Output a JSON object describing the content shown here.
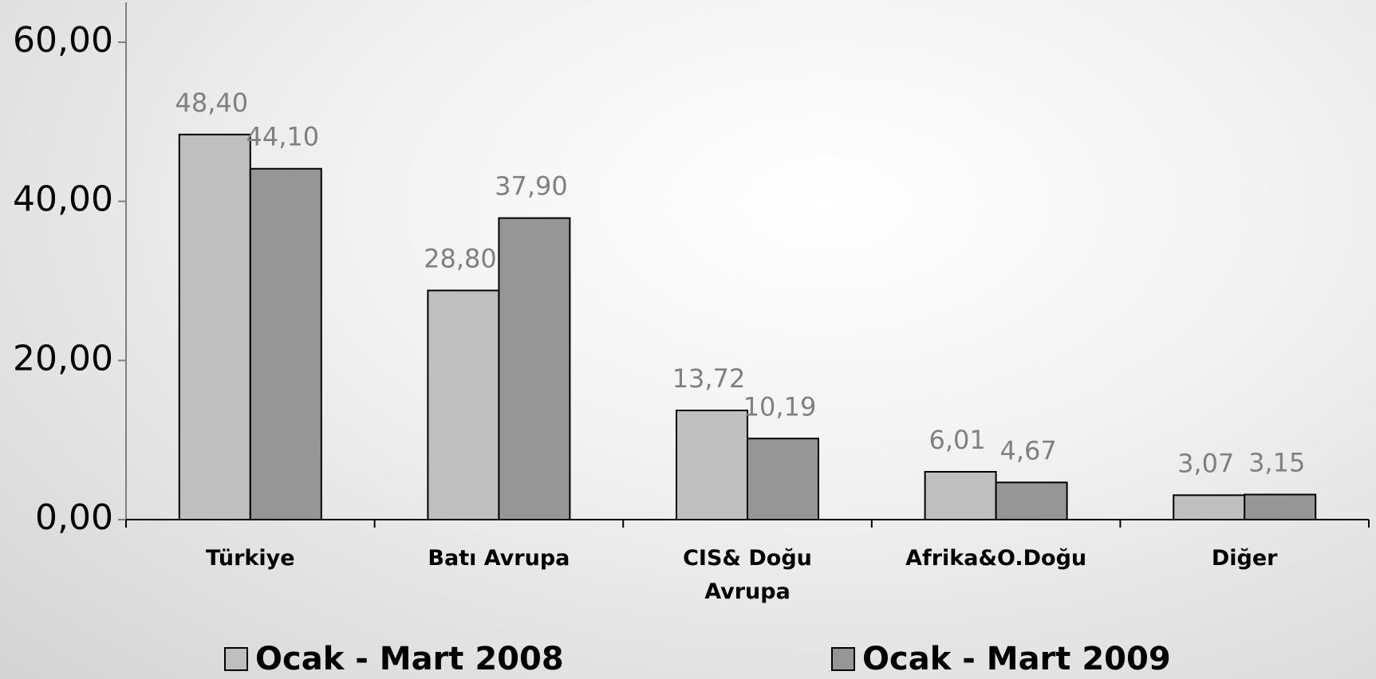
{
  "chart_data": {
    "type": "bar",
    "categories": [
      "Türkiye",
      "Batı Avrupa",
      "CIS& Doğu Avrupa",
      "Afrika&O.Doğu",
      "Diğer"
    ],
    "series": [
      {
        "name": "Ocak - Mart 2008",
        "color": "#bfbfbf",
        "values": [
          48.4,
          28.8,
          13.72,
          6.01,
          3.07
        ],
        "value_labels": [
          "48,40",
          "28,80",
          "13,72",
          "6,01",
          "3,07"
        ]
      },
      {
        "name": "Ocak - Mart 2009",
        "color": "#969696",
        "values": [
          44.1,
          37.9,
          10.19,
          4.67,
          3.15
        ],
        "value_labels": [
          "44,10",
          "37,90",
          "10,19",
          "4,67",
          "3,15"
        ]
      }
    ],
    "ylim": [
      0,
      60
    ],
    "yticks": [
      {
        "value": 0,
        "label": "0,00"
      },
      {
        "value": 20,
        "label": "20,00"
      },
      {
        "value": 40,
        "label": "40,00"
      },
      {
        "value": 60,
        "label": "60,00"
      }
    ],
    "legend": "bottom"
  }
}
